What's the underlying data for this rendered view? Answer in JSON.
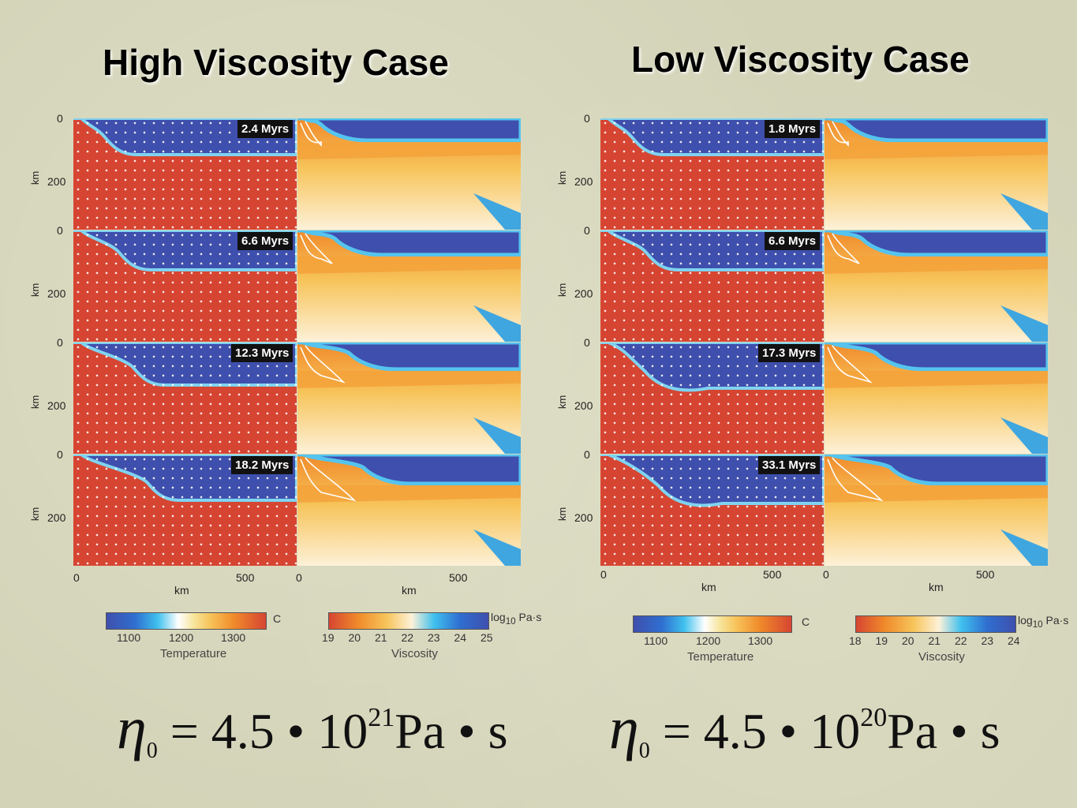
{
  "titles": {
    "left": "High Viscosity Case",
    "right": "Low Viscosity Case"
  },
  "axes": {
    "depth_ticks": [
      "0",
      "200"
    ],
    "depth_unit": "km",
    "x_ticks": [
      "0",
      "500"
    ],
    "x_unit": "km"
  },
  "left_case": {
    "times": [
      "2.4 Myrs",
      "6.6 Myrs",
      "12.3 Myrs",
      "18.2 Myrs"
    ],
    "temp_bar": {
      "ticks": [
        "1100",
        "1200",
        "1300"
      ],
      "unit": "C",
      "caption": "Temperature"
    },
    "visc_bar": {
      "ticks": [
        "19",
        "20",
        "21",
        "22",
        "23",
        "24",
        "25"
      ],
      "unit_log": "log",
      "unit_sub": "10",
      "unit_rest": "Pa·s",
      "caption": "Viscosity"
    },
    "formula": {
      "eta": "η",
      "sub": "0",
      "base": " = 4.5 • 10",
      "exp": "21",
      "rest": "Pa • s"
    }
  },
  "right_case": {
    "times": [
      "1.8 Myrs",
      "6.6 Myrs",
      "17.3 Myrs",
      "33.1 Myrs"
    ],
    "temp_bar": {
      "ticks": [
        "1100",
        "1200",
        "1300"
      ],
      "unit": "C",
      "caption": "Temperature"
    },
    "visc_bar": {
      "ticks": [
        "18",
        "19",
        "20",
        "21",
        "22",
        "23",
        "24"
      ],
      "unit_log": "log",
      "unit_sub": "10",
      "unit_rest": "Pa·s",
      "caption": "Viscosity"
    },
    "formula": {
      "eta": "η",
      "sub": "0",
      "base": " = 4.5 • 10",
      "exp": "20",
      "rest": "Pa • s"
    }
  },
  "colors": {
    "cold_blue": "#3f4fad",
    "hot_red": "#d64532",
    "visc_light": "#fbe4b3",
    "visc_orange": "#f3a23a"
  }
}
